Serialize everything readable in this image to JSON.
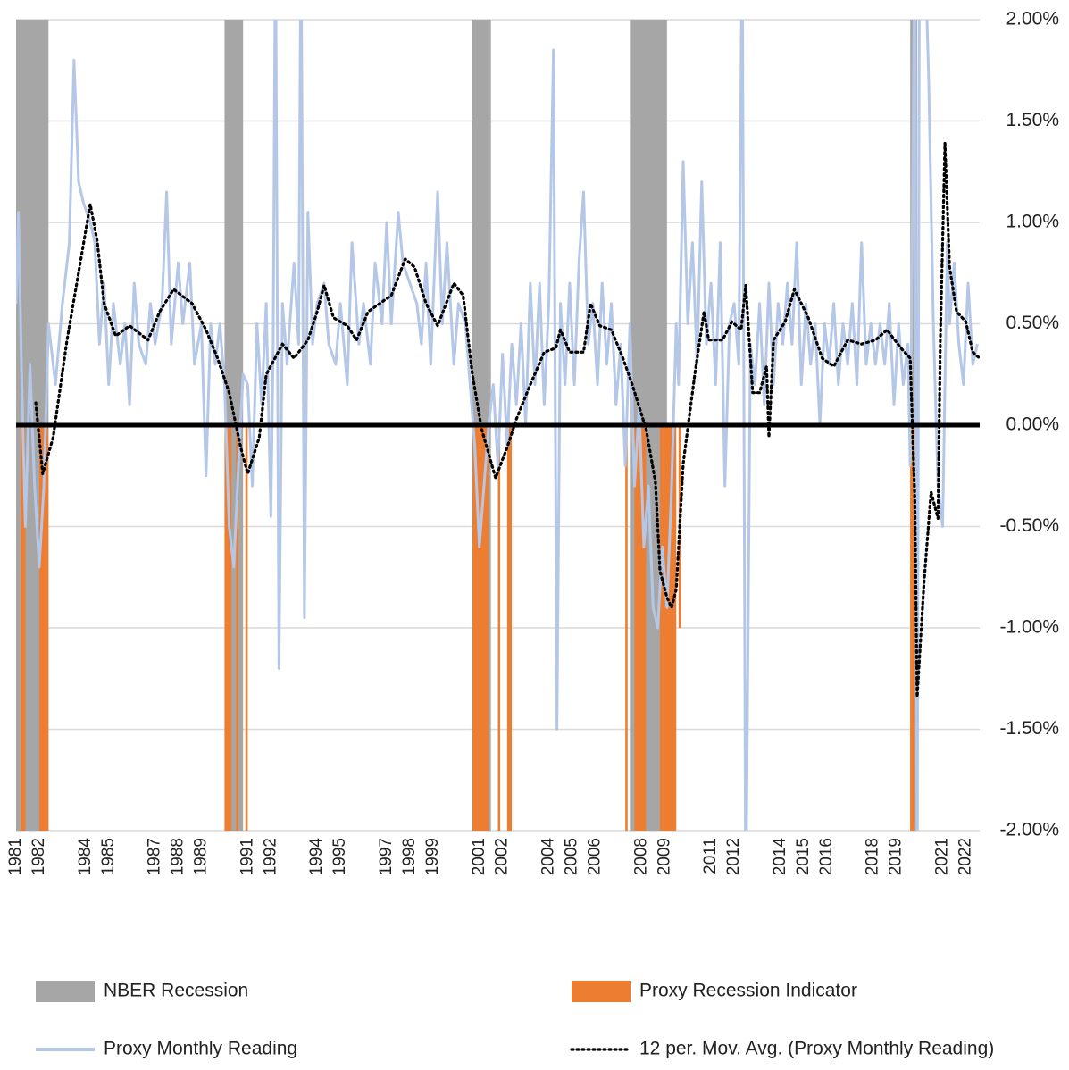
{
  "chart_data": {
    "type": "combo",
    "xlim": [
      1981,
      2022.6
    ],
    "xticks": [
      1981,
      1982,
      1984,
      1985,
      1987,
      1988,
      1989,
      1991,
      1992,
      1994,
      1995,
      1997,
      1998,
      1999,
      2001,
      2002,
      2004,
      2005,
      2006,
      2008,
      2009,
      2011,
      2012,
      2014,
      2015,
      2016,
      2018,
      2019,
      2021,
      2022
    ],
    "ylim": [
      -2,
      2
    ],
    "yticks": [
      {
        "value": -2,
        "label": "-2.00%"
      },
      {
        "value": -1.5,
        "label": "-1.50%"
      },
      {
        "value": -1,
        "label": "-1.00%"
      },
      {
        "value": -0.5,
        "label": "-0.50%"
      },
      {
        "value": 0,
        "label": "0.00%"
      },
      {
        "value": 0.5,
        "label": "0.50%"
      },
      {
        "value": 1,
        "label": "1.00%"
      },
      {
        "value": 1.5,
        "label": "1.50%"
      },
      {
        "value": 2,
        "label": "2.00%"
      }
    ],
    "grid": true,
    "legend": "bottom",
    "series": [
      {
        "name": "NBER Recession",
        "color": "#a6a6a6",
        "kind": "band",
        "start": [
          1981.0,
          1990.0,
          2000.7,
          2007.5,
          2019.6
        ],
        "end": [
          1982.4,
          1990.8,
          2001.5,
          2009.1,
          2019.9
        ]
      },
      {
        "name": "Proxy Recession Indicator",
        "color": "#ed7d31",
        "kind": "bar",
        "start": [
          1981.2,
          1982.0,
          1990.0,
          1990.5,
          1990.9,
          2000.7,
          2001.8,
          2002.2,
          2007.3,
          2007.7,
          2008.8,
          2009.6,
          2019.6
        ],
        "end": [
          1981.4,
          1982.4,
          1990.3,
          1990.6,
          1991.0,
          2001.4,
          2001.9,
          2002.4,
          2007.4,
          2008.2,
          2009.5,
          2009.7,
          2019.8
        ],
        "values": [
          -2,
          -2,
          -2,
          -2,
          -2,
          -2,
          -2,
          -2,
          -2,
          -2,
          -2,
          -1,
          -2
        ]
      },
      {
        "name": "Proxy Monthly Reading",
        "color": "#b4c7e7",
        "kind": "line",
        "x": [
          1981.0,
          1981.1,
          1981.25,
          1981.4,
          1981.6,
          1981.8,
          1982.0,
          1982.2,
          1982.4,
          1982.7,
          1983.0,
          1983.3,
          1983.5,
          1983.7,
          1983.9,
          1984.2,
          1984.4,
          1984.6,
          1984.8,
          1985.0,
          1985.2,
          1985.5,
          1985.7,
          1985.9,
          1986.1,
          1986.3,
          1986.6,
          1986.8,
          1987.0,
          1987.3,
          1987.5,
          1987.7,
          1988.0,
          1988.2,
          1988.5,
          1988.7,
          1989.0,
          1989.2,
          1989.4,
          1989.6,
          1989.8,
          1990.0,
          1990.2,
          1990.4,
          1990.6,
          1990.8,
          1991.0,
          1991.2,
          1991.4,
          1991.6,
          1991.8,
          1992.0,
          1992.1,
          1992.2,
          1992.35,
          1992.5,
          1992.7,
          1993.0,
          1993.2,
          1993.3,
          1993.45,
          1993.6,
          1993.8,
          1994.0,
          1994.3,
          1994.5,
          1994.8,
          1995.0,
          1995.3,
          1995.5,
          1995.8,
          1996.0,
          1996.3,
          1996.5,
          1996.8,
          1997.0,
          1997.2,
          1997.5,
          1997.7,
          1998.0,
          1998.3,
          1998.5,
          1998.7,
          1998.9,
          1999.2,
          1999.4,
          1999.6,
          1999.9,
          2000.1,
          2000.4,
          2000.6,
          2000.8,
          2001.0,
          2001.2,
          2001.4,
          2001.6,
          2001.8,
          2002.0,
          2002.2,
          2002.4,
          2002.6,
          2002.8,
          2003.0,
          2003.2,
          2003.4,
          2003.6,
          2003.8,
          2004.0,
          2004.2,
          2004.35,
          2004.5,
          2004.7,
          2004.9,
          2005.1,
          2005.3,
          2005.5,
          2005.7,
          2005.9,
          2006.1,
          2006.3,
          2006.5,
          2006.7,
          2006.9,
          2007.1,
          2007.3,
          2007.5,
          2007.7,
          2007.9,
          2008.1,
          2008.3,
          2008.5,
          2008.7,
          2008.9,
          2009.1,
          2009.3,
          2009.5,
          2009.6,
          2009.8,
          2010.0,
          2010.2,
          2010.4,
          2010.6,
          2010.8,
          2011.0,
          2011.2,
          2011.4,
          2011.6,
          2011.8,
          2012.0,
          2012.2,
          2012.35,
          2012.5,
          2012.7,
          2012.9,
          2013.1,
          2013.3,
          2013.5,
          2013.7,
          2013.9,
          2014.1,
          2014.3,
          2014.5,
          2014.7,
          2014.9,
          2015.1,
          2015.3,
          2015.5,
          2015.7,
          2015.9,
          2016.1,
          2016.3,
          2016.5,
          2016.7,
          2016.9,
          2017.1,
          2017.3,
          2017.5,
          2017.7,
          2017.9,
          2018.1,
          2018.3,
          2018.5,
          2018.7,
          2018.9,
          2019.1,
          2019.3,
          2019.5,
          2019.6,
          2019.7,
          2019.8,
          2019.9,
          2020.0,
          2020.2,
          2020.4,
          2020.6,
          2020.8,
          2021.0,
          2021.2,
          2021.3,
          2021.5,
          2021.7,
          2021.9,
          2022.1,
          2022.3,
          2022.5
        ],
        "values": [
          0.6,
          1.05,
          0.2,
          -0.5,
          0.3,
          -0.3,
          -0.7,
          -0.3,
          0.5,
          0.2,
          0.6,
          0.9,
          1.8,
          1.2,
          1.1,
          1.0,
          0.9,
          0.4,
          0.7,
          0.2,
          0.6,
          0.3,
          0.5,
          0.1,
          0.7,
          0.4,
          0.3,
          0.6,
          0.4,
          0.6,
          1.15,
          0.4,
          0.8,
          0.5,
          0.8,
          0.3,
          0.5,
          -0.25,
          0.5,
          0.3,
          0.5,
          0.2,
          -0.5,
          -0.7,
          -0.2,
          0.25,
          0.2,
          -0.3,
          0.5,
          0.1,
          0.6,
          -0.45,
          0.4,
          2.5,
          -1.2,
          0.6,
          0.3,
          0.8,
          0.4,
          2.5,
          -0.95,
          1.05,
          0.4,
          0.6,
          0.7,
          0.4,
          0.3,
          0.6,
          0.2,
          0.9,
          0.4,
          0.6,
          0.3,
          0.8,
          0.5,
          1.0,
          0.5,
          1.05,
          0.8,
          0.7,
          0.6,
          0.4,
          0.8,
          0.3,
          1.15,
          0.5,
          0.9,
          0.3,
          0.6,
          0.5,
          0.2,
          -0.1,
          -0.6,
          -0.3,
          0.0,
          0.2,
          -0.2,
          0.35,
          -0.1,
          0.4,
          0.1,
          0.5,
          0.0,
          0.7,
          0.2,
          0.7,
          0.1,
          0.6,
          1.85,
          -1.5,
          0.6,
          0.2,
          0.7,
          0.2,
          0.8,
          1.15,
          0.4,
          0.6,
          0.2,
          0.7,
          0.3,
          0.6,
          0.1,
          0.4,
          -0.2,
          0.5,
          -0.3,
          0.1,
          -0.6,
          -0.3,
          -0.9,
          -1.0,
          -0.6,
          -0.9,
          -0.3,
          0.5,
          0.2,
          1.3,
          0.5,
          0.9,
          0.3,
          1.2,
          0.4,
          0.7,
          0.2,
          0.9,
          -0.3,
          0.5,
          0.6,
          0.3,
          2.5,
          -2.5,
          0.4,
          0.2,
          0.6,
          0.1,
          0.7,
          0.2,
          0.6,
          0.4,
          0.7,
          0.4,
          0.9,
          0.2,
          0.6,
          0.3,
          0.5,
          0.0,
          0.5,
          0.3,
          0.6,
          0.2,
          0.5,
          0.3,
          0.6,
          0.2,
          0.9,
          0.3,
          0.5,
          0.3,
          0.5,
          0.3,
          0.6,
          0.1,
          0.5,
          0.2,
          0.4,
          -0.2,
          1.1,
          2.5,
          -2.5,
          2.5,
          2.5,
          1.7,
          0.5,
          -0.3,
          -0.5,
          0.9,
          0.5,
          0.8,
          0.4,
          0.2,
          0.7,
          0.3,
          0.4
        ]
      },
      {
        "name": "12 per. Mov. Avg. (Proxy Monthly Reading)",
        "color": "#000000",
        "kind": "line",
        "style": "dotted",
        "x": [
          1981.85,
          1982.15,
          1982.6,
          1983.2,
          1983.8,
          1984.2,
          1984.5,
          1984.8,
          1985.3,
          1985.9,
          1986.7,
          1987.2,
          1987.8,
          1988.6,
          1989.2,
          1989.7,
          1990.2,
          1990.7,
          1991.0,
          1991.5,
          1991.8,
          1992.5,
          1993.0,
          1993.6,
          1994.0,
          1994.3,
          1994.7,
          1995.3,
          1995.7,
          1996.2,
          1996.7,
          1997.2,
          1997.8,
          1998.2,
          1998.7,
          1999.2,
          1999.5,
          1999.9,
          2000.3,
          2000.7,
          2001.1,
          2001.7,
          2002.2,
          2002.6,
          2003.2,
          2003.8,
          2004.3,
          2004.5,
          2004.9,
          2005.5,
          2005.8,
          2006.2,
          2006.7,
          2007.2,
          2007.6,
          2008.2,
          2008.6,
          2008.8,
          2009.1,
          2009.3,
          2009.5,
          2009.8,
          2010.3,
          2010.7,
          2010.9,
          2011.5,
          2011.9,
          2012.3,
          2012.5,
          2012.8,
          2013.1,
          2013.4,
          2013.5,
          2013.7,
          2014.2,
          2014.6,
          2015.2,
          2015.8,
          2016.3,
          2016.9,
          2017.5,
          2018.1,
          2018.6,
          2019.2,
          2019.6,
          2019.8,
          2019.9,
          2020.2,
          2020.5,
          2020.8,
          2020.9,
          2021.1,
          2021.3,
          2021.6,
          2022.0,
          2022.3,
          2022.6
        ],
        "values": [
          0.11,
          -0.24,
          -0.06,
          0.42,
          0.82,
          1.09,
          0.91,
          0.6,
          0.44,
          0.49,
          0.42,
          0.56,
          0.67,
          0.6,
          0.47,
          0.33,
          0.16,
          -0.11,
          -0.24,
          -0.06,
          0.25,
          0.4,
          0.33,
          0.42,
          0.56,
          0.69,
          0.53,
          0.49,
          0.42,
          0.56,
          0.6,
          0.64,
          0.82,
          0.78,
          0.6,
          0.49,
          0.58,
          0.7,
          0.64,
          0.25,
          -0.02,
          -0.26,
          -0.11,
          0.03,
          0.2,
          0.36,
          0.38,
          0.47,
          0.36,
          0.36,
          0.6,
          0.49,
          0.47,
          0.33,
          0.2,
          -0.02,
          -0.28,
          -0.72,
          -0.85,
          -0.9,
          -0.81,
          -0.19,
          0.25,
          0.56,
          0.42,
          0.42,
          0.51,
          0.47,
          0.69,
          0.16,
          0.16,
          0.29,
          -0.06,
          0.42,
          0.51,
          0.67,
          0.53,
          0.33,
          0.29,
          0.42,
          0.4,
          0.42,
          0.47,
          0.38,
          0.33,
          -0.37,
          -1.34,
          -0.77,
          -0.33,
          -0.46,
          0.42,
          1.39,
          0.78,
          0.56,
          0.51,
          0.36,
          0.33
        ]
      }
    ]
  }
}
